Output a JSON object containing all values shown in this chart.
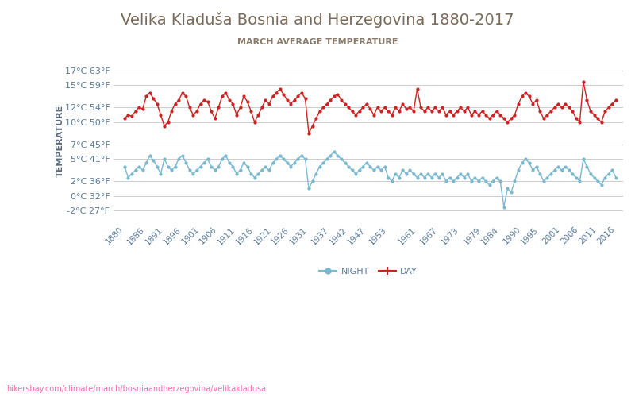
{
  "title": "Velika Kladuša Bosnia and Herzegovina 1880-2017",
  "subtitle": "MARCH AVERAGE TEMPERATURE",
  "ylabel_text": "TEMPERATURE",
  "background_color": "#ffffff",
  "plot_bg_color": "#ffffff",
  "grid_color": "#cccccc",
  "title_color": "#7a6a5a",
  "subtitle_color": "#8a7a6a",
  "ylabel_color": "#5a6a7a",
  "tick_color": "#5a7a9a",
  "footer_text": "hikersbay.com/climate/march/bosniaandherzegovina/velikakladusa",
  "footer_color": "#ff69b4",
  "day_color": "#cc2222",
  "night_color": "#7ab8d0",
  "legend_day": "DAY",
  "legend_night": "NIGHT",
  "yticks_c": [
    -2,
    0,
    2,
    5,
    7,
    10,
    12,
    15,
    17
  ],
  "yticks_f": [
    27,
    32,
    36,
    41,
    45,
    50,
    54,
    59,
    63
  ],
  "x_years": [
    1880,
    1886,
    1891,
    1896,
    1901,
    1906,
    1911,
    1916,
    1921,
    1926,
    1931,
    1937,
    1942,
    1947,
    1953,
    1961,
    1967,
    1973,
    1979,
    1984,
    1990,
    1995,
    2001,
    2006,
    2011,
    2016
  ],
  "day_data": {
    "1880": 10.5,
    "1881": 11.0,
    "1882": 10.8,
    "1883": 11.5,
    "1884": 12.0,
    "1885": 11.8,
    "1886": 13.5,
    "1887": 14.0,
    "1888": 13.2,
    "1889": 12.5,
    "1890": 11.0,
    "1891": 9.5,
    "1892": 10.0,
    "1893": 11.5,
    "1894": 12.5,
    "1895": 13.0,
    "1896": 14.0,
    "1897": 13.5,
    "1898": 12.0,
    "1899": 11.0,
    "1900": 11.5,
    "1901": 12.5,
    "1902": 13.0,
    "1903": 12.8,
    "1904": 11.5,
    "1905": 10.5,
    "1906": 12.0,
    "1907": 13.5,
    "1908": 14.0,
    "1909": 13.0,
    "1910": 12.5,
    "1911": 11.0,
    "1912": 12.0,
    "1913": 13.5,
    "1914": 12.8,
    "1915": 11.5,
    "1916": 10.0,
    "1917": 11.0,
    "1918": 12.0,
    "1919": 13.0,
    "1920": 12.5,
    "1921": 13.5,
    "1922": 14.0,
    "1923": 14.5,
    "1924": 13.8,
    "1925": 13.0,
    "1926": 12.5,
    "1927": 13.0,
    "1928": 13.5,
    "1929": 14.0,
    "1930": 13.2,
    "1931": 8.5,
    "1932": 9.5,
    "1933": 10.5,
    "1934": 11.5,
    "1935": 12.0,
    "1936": 12.5,
    "1937": 13.0,
    "1938": 13.5,
    "1939": 13.8,
    "1940": 13.0,
    "1941": 12.5,
    "1942": 12.0,
    "1943": 11.5,
    "1944": 11.0,
    "1945": 11.5,
    "1946": 12.0,
    "1947": 12.5,
    "1948": 11.8,
    "1949": 11.0,
    "1950": 12.0,
    "1951": 11.5,
    "1952": 12.0,
    "1953": 11.5,
    "1954": 11.0,
    "1955": 12.0,
    "1956": 11.5,
    "1957": 12.5,
    "1958": 11.8,
    "1959": 12.0,
    "1960": 11.5,
    "1961": 14.5,
    "1962": 12.0,
    "1963": 11.5,
    "1964": 12.0,
    "1965": 11.5,
    "1966": 12.0,
    "1967": 11.5,
    "1968": 12.0,
    "1969": 11.0,
    "1970": 11.5,
    "1971": 11.0,
    "1972": 11.5,
    "1973": 12.0,
    "1974": 11.5,
    "1975": 12.0,
    "1976": 11.0,
    "1977": 11.5,
    "1978": 11.0,
    "1979": 11.5,
    "1980": 11.0,
    "1981": 10.5,
    "1982": 11.0,
    "1983": 11.5,
    "1984": 11.0,
    "1985": 10.5,
    "1986": 10.0,
    "1987": 10.5,
    "1988": 11.0,
    "1989": 12.5,
    "1990": 13.5,
    "1991": 14.0,
    "1992": 13.5,
    "1993": 12.5,
    "1994": 13.0,
    "1995": 11.5,
    "1996": 10.5,
    "1997": 11.0,
    "1998": 11.5,
    "1999": 12.0,
    "2000": 12.5,
    "2001": 12.0,
    "2002": 12.5,
    "2003": 12.0,
    "2004": 11.5,
    "2005": 10.5,
    "2006": 10.0,
    "2007": 15.5,
    "2008": 13.0,
    "2009": 11.5,
    "2010": 11.0,
    "2011": 10.5,
    "2012": 10.0,
    "2013": 11.5,
    "2014": 12.0,
    "2015": 12.5,
    "2016": 13.0
  },
  "night_data": {
    "1880": 4.0,
    "1881": 2.5,
    "1882": 3.0,
    "1883": 3.5,
    "1884": 4.0,
    "1885": 3.5,
    "1886": 4.5,
    "1887": 5.5,
    "1888": 4.8,
    "1889": 4.0,
    "1890": 3.0,
    "1891": 5.0,
    "1892": 4.0,
    "1893": 3.5,
    "1894": 4.0,
    "1895": 5.0,
    "1896": 5.5,
    "1897": 4.5,
    "1898": 3.5,
    "1899": 3.0,
    "1900": 3.5,
    "1901": 4.0,
    "1902": 4.5,
    "1903": 5.0,
    "1904": 4.0,
    "1905": 3.5,
    "1906": 4.0,
    "1907": 5.0,
    "1908": 5.5,
    "1909": 4.5,
    "1910": 4.0,
    "1911": 3.0,
    "1912": 3.5,
    "1913": 4.5,
    "1914": 4.0,
    "1915": 3.0,
    "1916": 2.5,
    "1917": 3.0,
    "1918": 3.5,
    "1919": 4.0,
    "1920": 3.5,
    "1921": 4.5,
    "1922": 5.0,
    "1923": 5.5,
    "1924": 5.0,
    "1925": 4.5,
    "1926": 4.0,
    "1927": 4.5,
    "1928": 5.0,
    "1929": 5.5,
    "1930": 5.0,
    "1931": 1.0,
    "1932": 2.0,
    "1933": 3.0,
    "1934": 4.0,
    "1935": 4.5,
    "1936": 5.0,
    "1937": 5.5,
    "1938": 6.0,
    "1939": 5.5,
    "1940": 5.0,
    "1941": 4.5,
    "1942": 4.0,
    "1943": 3.5,
    "1944": 3.0,
    "1945": 3.5,
    "1946": 4.0,
    "1947": 4.5,
    "1948": 4.0,
    "1949": 3.5,
    "1950": 4.0,
    "1951": 3.5,
    "1952": 4.0,
    "1953": 2.5,
    "1954": 2.0,
    "1955": 3.0,
    "1956": 2.5,
    "1957": 3.5,
    "1958": 3.0,
    "1959": 3.5,
    "1960": 3.0,
    "1961": 2.5,
    "1962": 3.0,
    "1963": 2.5,
    "1964": 3.0,
    "1965": 2.5,
    "1966": 3.0,
    "1967": 2.5,
    "1968": 3.0,
    "1969": 2.0,
    "1970": 2.5,
    "1971": 2.0,
    "1972": 2.5,
    "1973": 3.0,
    "1974": 2.5,
    "1975": 3.0,
    "1976": 2.0,
    "1977": 2.5,
    "1978": 2.0,
    "1979": 2.5,
    "1980": 2.0,
    "1981": 1.5,
    "1982": 2.0,
    "1983": 2.5,
    "1984": 2.0,
    "1985": -1.5,
    "1986": 1.0,
    "1987": 0.5,
    "1988": 2.0,
    "1989": 3.5,
    "1990": 4.5,
    "1991": 5.0,
    "1992": 4.5,
    "1993": 3.5,
    "1994": 4.0,
    "1995": 3.0,
    "1996": 2.0,
    "1997": 2.5,
    "1998": 3.0,
    "1999": 3.5,
    "2000": 4.0,
    "2001": 3.5,
    "2002": 4.0,
    "2003": 3.5,
    "2004": 3.0,
    "2005": 2.5,
    "2006": 2.0,
    "2007": 5.0,
    "2008": 4.0,
    "2009": 3.0,
    "2010": 2.5,
    "2011": 2.0,
    "2012": 1.5,
    "2013": 2.5,
    "2014": 3.0,
    "2015": 3.5,
    "2016": 2.5
  }
}
